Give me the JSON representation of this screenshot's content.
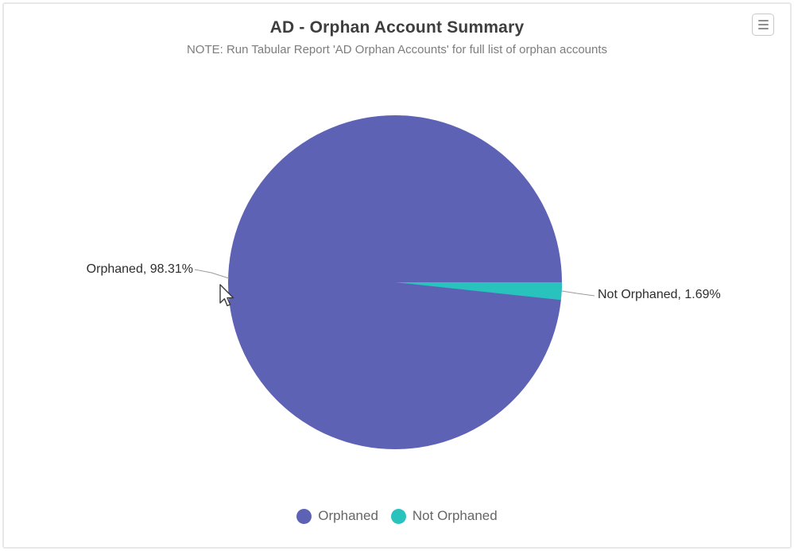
{
  "header": {
    "title": "AD - Orphan Account Summary",
    "subtitle": "NOTE: Run Tabular Report 'AD Orphan Accounts' for full list of orphan accounts"
  },
  "toolbar": {
    "export_menu_icon": "hamburger-menu-icon"
  },
  "chart_data": {
    "type": "pie",
    "title": "AD - Orphan Account Summary",
    "subtitle": "NOTE: Run Tabular Report 'AD Orphan Accounts' for full list of orphan accounts",
    "slices": [
      {
        "label": "Orphaned",
        "value_pct": 98.31,
        "color": "#5d62b5",
        "data_label": "Orphaned, 98.31%"
      },
      {
        "label": "Not Orphaned",
        "value_pct": 1.69,
        "color": "#29c3be",
        "data_label": "Not Orphaned, 1.69%"
      }
    ],
    "legend_position": "bottom",
    "data_labels_on": true,
    "connector_color": "#9b9b9b"
  },
  "legend": {
    "items": [
      {
        "label": "Orphaned",
        "color": "#5d62b5"
      },
      {
        "label": "Not Orphaned",
        "color": "#29c3be"
      }
    ]
  },
  "colors": {
    "title_text": "#3e3e3e",
    "subtitle_text": "#7d7d7d",
    "label_text": "#2e2e2e",
    "legend_text": "#666666",
    "frame_border": "#e8e8e8"
  }
}
